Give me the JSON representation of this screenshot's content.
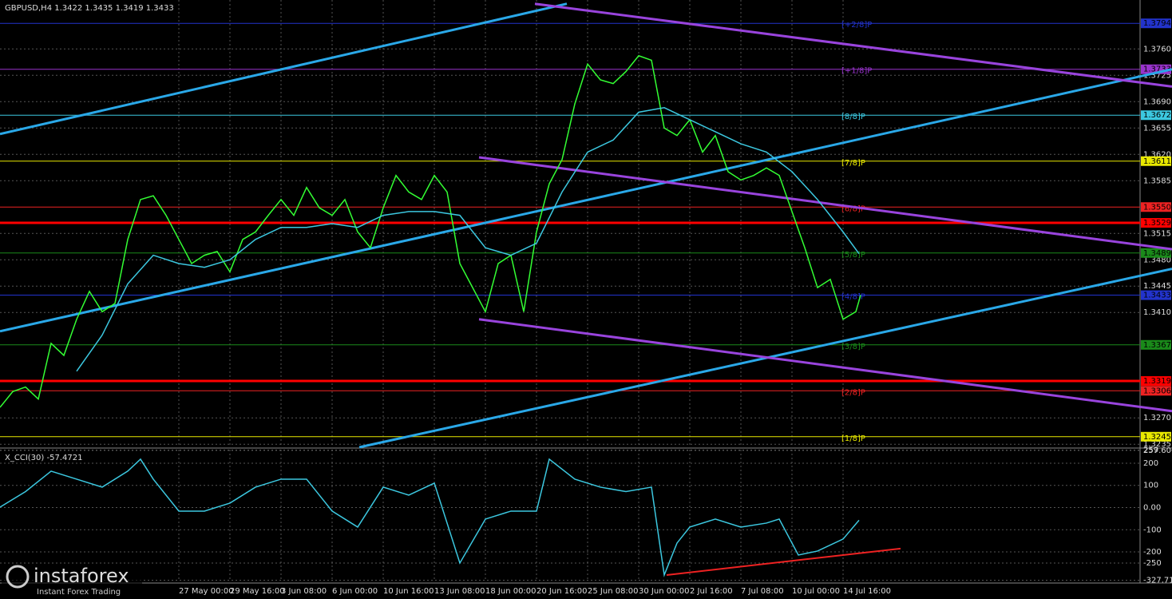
{
  "chart_data": [
    {
      "type": "line",
      "title": "GBPUSD,H4  1.3422 1.3435 1.3419 1.3433",
      "grid": true,
      "xlim": [
        0,
        357
      ],
      "ylim": [
        1.3231,
        1.3825
      ],
      "xticks": [
        {
          "value": 56,
          "label": "27 May 00:00"
        },
        {
          "value": 72,
          "label": "29 May 16:00"
        },
        {
          "value": 88,
          "label": "3 Jun 08:00"
        },
        {
          "value": 104,
          "label": "6 Jun 00:00"
        },
        {
          "value": 120,
          "label": "10 Jun 16:00"
        },
        {
          "value": 136,
          "label": "13 Jun 08:00"
        },
        {
          "value": 152,
          "label": "18 Jun 00:00"
        },
        {
          "value": 168,
          "label": "20 Jun 16:00"
        },
        {
          "value": 184,
          "label": "25 Jun 08:00"
        },
        {
          "value": 200,
          "label": "30 Jun 00:00"
        },
        {
          "value": 216,
          "label": "2 Jul 16:00"
        },
        {
          "value": 232,
          "label": "7 Jul 08:00"
        },
        {
          "value": 248,
          "label": "10 Jul 00:00"
        },
        {
          "value": 264,
          "label": "14 Jul 16:00"
        }
      ],
      "yticks": [
        {
          "value": 1.376,
          "label": "1.3760"
        },
        {
          "value": 1.3725,
          "label": "1.3725"
        },
        {
          "value": 1.369,
          "label": "1.3690"
        },
        {
          "value": 1.3655,
          "label": "1.3655"
        },
        {
          "value": 1.362,
          "label": "1.3620"
        },
        {
          "value": 1.3585,
          "label": "1.3585"
        },
        {
          "value": 1.3515,
          "label": "1.3515"
        },
        {
          "value": 1.348,
          "label": "1.3480"
        },
        {
          "value": 1.3445,
          "label": "1.3445"
        },
        {
          "value": 1.341,
          "label": "1.3410"
        },
        {
          "value": 1.327,
          "label": "1.3270"
        },
        {
          "value": 1.3235,
          "label": "1.3235"
        }
      ],
      "series": [
        {
          "name": "GBPUSD",
          "color": "#33ff33",
          "x": [
            0,
            4,
            8,
            12,
            16,
            20,
            24,
            28,
            32,
            36,
            40,
            44,
            48,
            52,
            56,
            60,
            64,
            68,
            72,
            76,
            80,
            84,
            88,
            92,
            96,
            100,
            104,
            108,
            112,
            116,
            120,
            124,
            128,
            132,
            136,
            140,
            144,
            148,
            152,
            156,
            160,
            164,
            168,
            172,
            176,
            180,
            184,
            188,
            192,
            196,
            200,
            204,
            208,
            212,
            216,
            220,
            224,
            228,
            232,
            236,
            240,
            244,
            248,
            252,
            256,
            260,
            264,
            268,
            269.5
          ],
          "values": [
            1.3284,
            1.3305,
            1.3311,
            1.3295,
            1.3369,
            1.3353,
            1.3401,
            1.3438,
            1.3411,
            1.3422,
            1.3507,
            1.356,
            1.3565,
            1.3539,
            1.3507,
            1.3475,
            1.3486,
            1.3491,
            1.3464,
            1.3507,
            1.3517,
            1.3539,
            1.356,
            1.3539,
            1.3576,
            1.3549,
            1.3539,
            1.356,
            1.3517,
            1.3496,
            1.3549,
            1.3592,
            1.357,
            1.356,
            1.3592,
            1.357,
            1.3475,
            1.3443,
            1.3411,
            1.3475,
            1.3486,
            1.3411,
            1.3517,
            1.3581,
            1.3613,
            1.3687,
            1.374,
            1.3719,
            1.3714,
            1.373,
            1.3751,
            1.3745,
            1.3655,
            1.3645,
            1.3666,
            1.3623,
            1.3645,
            1.3597,
            1.3586,
            1.3592,
            1.3602,
            1.3592,
            1.3544,
            1.3496,
            1.3443,
            1.3454,
            1.3401,
            1.3411,
            1.3433
          ]
        },
        {
          "name": "MA",
          "color": "#3cc8e0",
          "x": [
            24,
            32,
            40,
            48,
            56,
            64,
            72,
            80,
            88,
            96,
            104,
            112,
            120,
            128,
            136,
            144,
            152,
            160,
            168,
            176,
            184,
            192,
            200,
            208,
            216,
            224,
            232,
            240,
            248,
            256,
            264,
            269
          ],
          "values": [
            1.3332,
            1.338,
            1.3448,
            1.3486,
            1.3475,
            1.347,
            1.348,
            1.3507,
            1.3523,
            1.3523,
            1.3528,
            1.3523,
            1.3539,
            1.3544,
            1.3544,
            1.3539,
            1.3496,
            1.3486,
            1.3502,
            1.357,
            1.3623,
            1.3639,
            1.3676,
            1.3682,
            1.3666,
            1.365,
            1.3634,
            1.3623,
            1.3597,
            1.356,
            1.3517,
            1.3488
          ]
        }
      ],
      "levels": [
        {
          "value": 1.3794,
          "label": "1.3794",
          "tag": "[+2/8]P",
          "color": "#2233cc"
        },
        {
          "value": 1.3733,
          "label": "1.3733",
          "tag": "[+1/8]P",
          "color": "#9933cc"
        },
        {
          "value": 1.3672,
          "label": "1.3672",
          "tag": "[8/8]P",
          "color": "#3cc8e0"
        },
        {
          "value": 1.3611,
          "label": "1.3611",
          "tag": "[7/8]P",
          "color": "#e8e800"
        },
        {
          "value": 1.355,
          "label": "1.3550",
          "tag": "[6/8]P",
          "color": "#ee2222"
        },
        {
          "value": 1.3529,
          "label": "1.3529",
          "color": "#ff0000"
        },
        {
          "value": 1.3489,
          "label": "1.3489",
          "tag": "[5/8]P",
          "color": "#1a8a1a"
        },
        {
          "value": 1.3433,
          "label": "1.3433",
          "tag": "[4/8]P",
          "color": "#2233cc"
        },
        {
          "value": 1.3367,
          "label": "1.3367",
          "tag": "[3/8]P",
          "color": "#1a8a1a"
        },
        {
          "value": 1.3319,
          "label": "1.3319",
          "color": "#ff0000"
        },
        {
          "value": 1.3306,
          "label": "1.3306",
          "tag": "[2/8]P",
          "color": "#ee2222"
        },
        {
          "value": 1.3245,
          "label": "1.3245",
          "tag": "[1/8]P",
          "color": "#e8e800"
        }
      ],
      "trendlines": [
        {
          "x": [
            0,
            177.5
          ],
          "y": [
            1.3647,
            1.382
          ],
          "color": "#2aa8e8"
        },
        {
          "x": [
            0,
            367
          ],
          "y": [
            1.3385,
            1.3733
          ],
          "color": "#2aa8e8"
        },
        {
          "x": [
            112.5,
            367
          ],
          "y": [
            1.3231,
            1.3468
          ],
          "color": "#2aa8e8"
        },
        {
          "x": [
            167.5,
            367
          ],
          "y": [
            1.382,
            1.371
          ],
          "color": "#9944dd"
        },
        {
          "x": [
            150,
            367
          ],
          "y": [
            1.3616,
            1.3494
          ],
          "color": "#9944dd"
        },
        {
          "x": [
            150,
            367
          ],
          "y": [
            1.3401,
            1.3279
          ],
          "color": "#9944dd"
        }
      ]
    },
    {
      "type": "line",
      "title": "X_CCI(30) -57.4721",
      "grid": true,
      "xlim": [
        0,
        357
      ],
      "ylim": [
        -333,
        261
      ],
      "yticks": [
        259,
        257.6065,
        200,
        100,
        {
          "value": 0,
          "label": "0.00"
        },
        -100,
        -200,
        -250,
        -327.719
      ],
      "series": [
        {
          "name": "CCI",
          "color": "#3cc8e0",
          "x": [
            0,
            8,
            16,
            24,
            32,
            40,
            44,
            48,
            56,
            64,
            72,
            80,
            88,
            96,
            104,
            112,
            120,
            128,
            136,
            144,
            152,
            160,
            168,
            172,
            180,
            188,
            196,
            204,
            208,
            212,
            216,
            224,
            232,
            240,
            244,
            250,
            256,
            264,
            269
          ],
          "values": [
            2,
            72,
            164,
            128,
            92,
            164,
            218,
            128,
            -16,
            -16,
            20,
            92,
            128,
            128,
            -16,
            -88,
            92,
            56,
            110,
            -250,
            -52,
            -16,
            -16,
            218,
            128,
            92,
            72,
            92,
            -304,
            -160,
            -88,
            -52,
            -88,
            -70,
            -52,
            -214,
            -196,
            -142,
            -57
          ]
        }
      ],
      "trendlines": [
        {
          "x": [
            208.75,
            282
          ],
          "y": [
            -304,
            -185
          ],
          "color": "#ee2222"
        }
      ]
    }
  ],
  "watermark": {
    "brand": "instaforex",
    "slogan": "Instant Forex Trading"
  }
}
